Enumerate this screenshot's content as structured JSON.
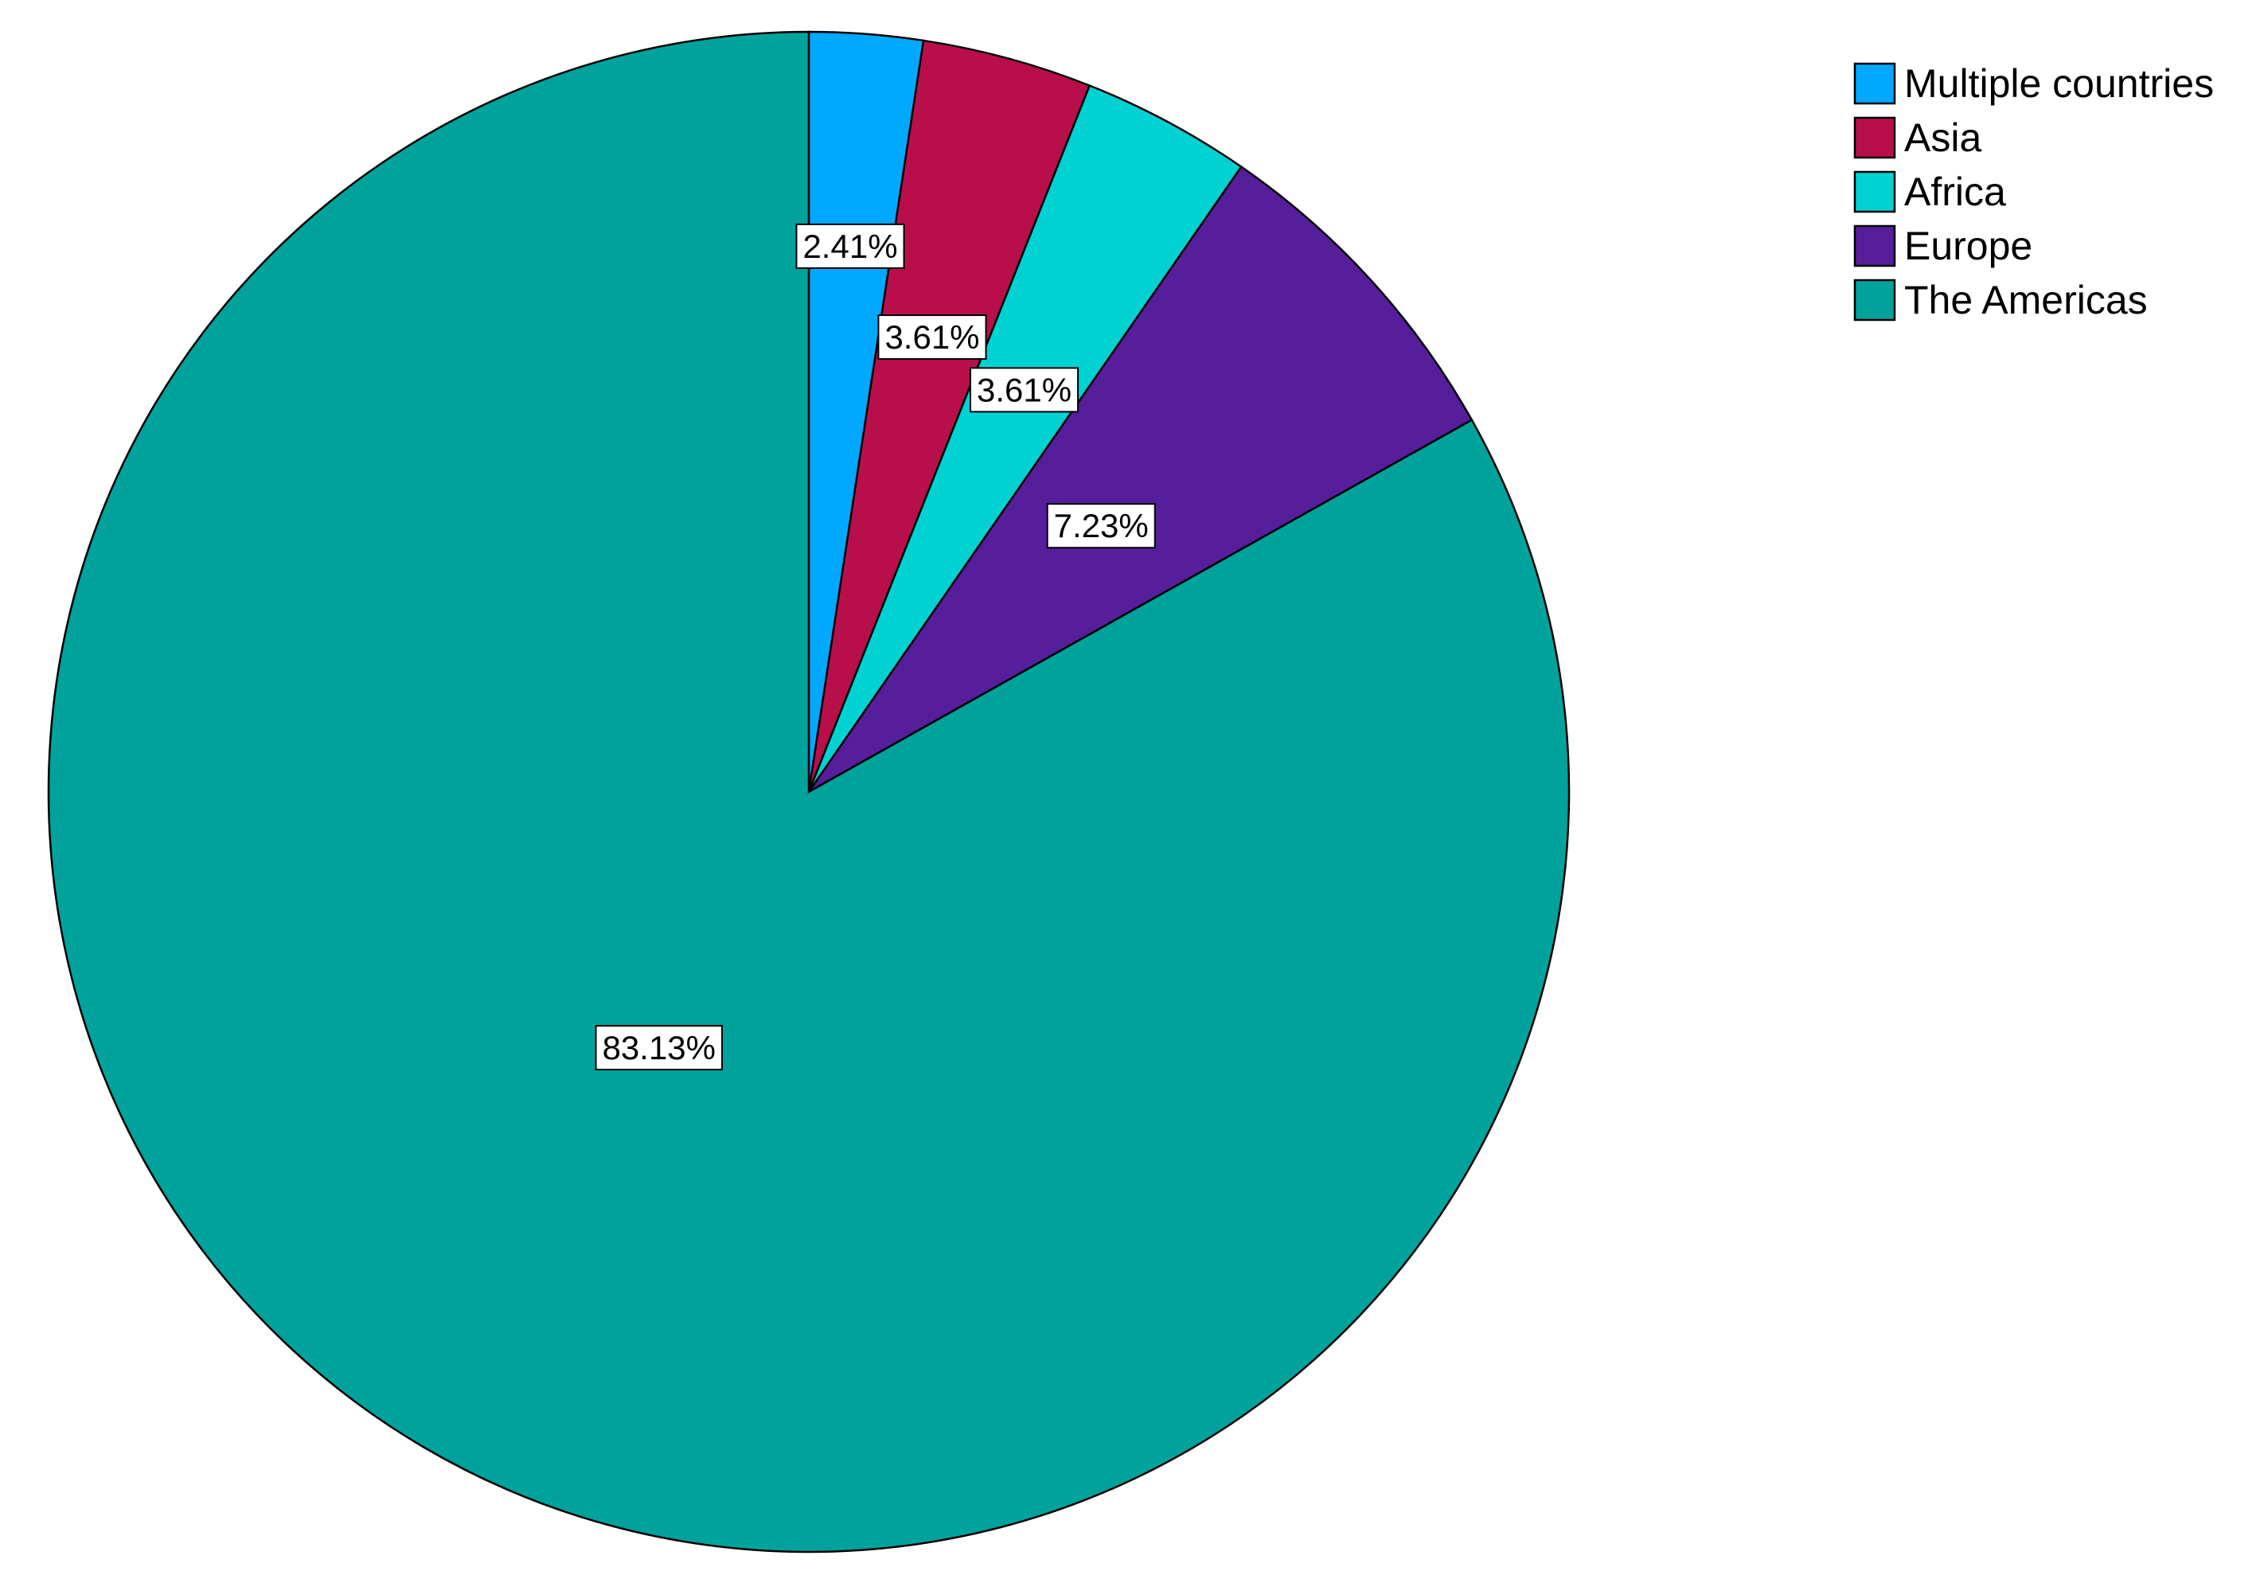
{
  "chart_data": {
    "type": "pie",
    "title": "",
    "start_angle": "12 o'clock",
    "direction": "clockwise",
    "legend_position": "top-right",
    "slices": [
      {
        "label": "Multiple countries",
        "value": 2.41,
        "value_label": "2.41%",
        "color": "#00A9FF"
      },
      {
        "label": "Asia",
        "value": 3.61,
        "value_label": "3.61%",
        "color": "#B80F4B"
      },
      {
        "label": "Africa",
        "value": 3.61,
        "value_label": "3.61%",
        "color": "#00D2D2"
      },
      {
        "label": "Europe",
        "value": 7.23,
        "value_label": "7.23%",
        "color": "#561E9B"
      },
      {
        "label": "The Americas",
        "value": 83.13,
        "value_label": "83.13%",
        "color": "#00A39B"
      }
    ]
  }
}
